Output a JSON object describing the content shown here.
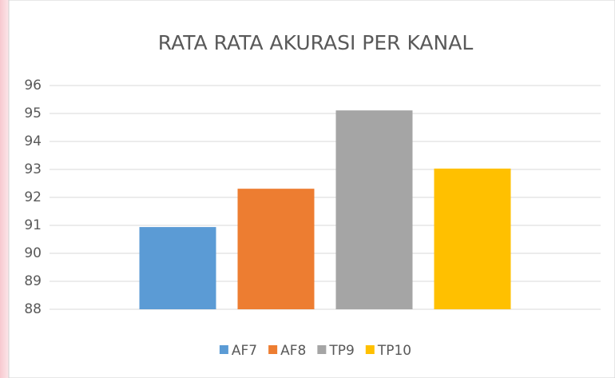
{
  "chart_data": {
    "type": "bar",
    "title": "RATA RATA AKURASI PER KANAL",
    "categories": [
      null
    ],
    "series": [
      {
        "name": "AF7",
        "color": "#5b9bd5",
        "values": [
          90.94
        ]
      },
      {
        "name": "AF8",
        "color": "#ed7d31",
        "values": [
          92.31
        ]
      },
      {
        "name": "TP9",
        "color": "#a5a5a5",
        "values": [
          95.11
        ]
      },
      {
        "name": "TP10",
        "color": "#ffc000",
        "values": [
          93.03
        ]
      }
    ],
    "ylim": [
      88,
      96
    ],
    "yticks": [
      88,
      89,
      90,
      91,
      92,
      93,
      94,
      95,
      96
    ],
    "grid": true,
    "legend": "bottom"
  }
}
